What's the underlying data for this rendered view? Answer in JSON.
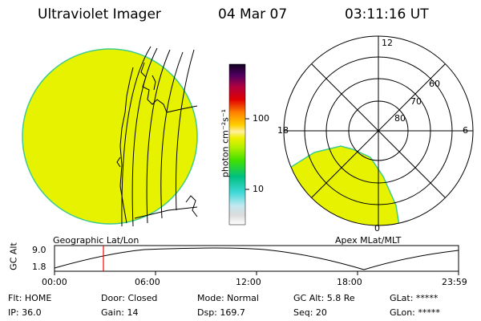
{
  "header": {
    "instrument": "Ultraviolet Imager",
    "date": "04 Mar 07",
    "time": "03:11:16 UT"
  },
  "colorbar": {
    "unit_label": "photon cm⁻²s⁻¹",
    "ticks": [
      "100",
      "10"
    ]
  },
  "polar_plot": {
    "mlt_labels": {
      "top": "12",
      "left": "18",
      "right": "6",
      "bottom": "0"
    },
    "lat_labels": [
      "60",
      "70",
      "80"
    ],
    "fill_color": "#e6f200",
    "edge_color": "#3ecc8c"
  },
  "panel_labels": {
    "left": "Geographic Lat/Lon",
    "right": "Apex MLat/MLT"
  },
  "altitude_plot": {
    "ylabel": "GC Alt",
    "y_ticks": [
      "9.0",
      "1.8"
    ],
    "x_ticks": [
      "00:00",
      "06:00",
      "12:00",
      "18:00",
      "23:59"
    ]
  },
  "status": {
    "row1": [
      {
        "label": "Flt: HOME"
      },
      {
        "label": "Door: Closed"
      },
      {
        "label": "Mode: Normal"
      },
      {
        "label": "GC Alt: 5.8 Re"
      },
      {
        "label": "GLat: *****"
      }
    ],
    "row2": [
      {
        "label": "IP: 36.0"
      },
      {
        "label": "Gain: 14"
      },
      {
        "label": "Dsp:  169.7"
      },
      {
        "label": "Seq: 20"
      },
      {
        "label": "GLon: *****"
      }
    ]
  }
}
